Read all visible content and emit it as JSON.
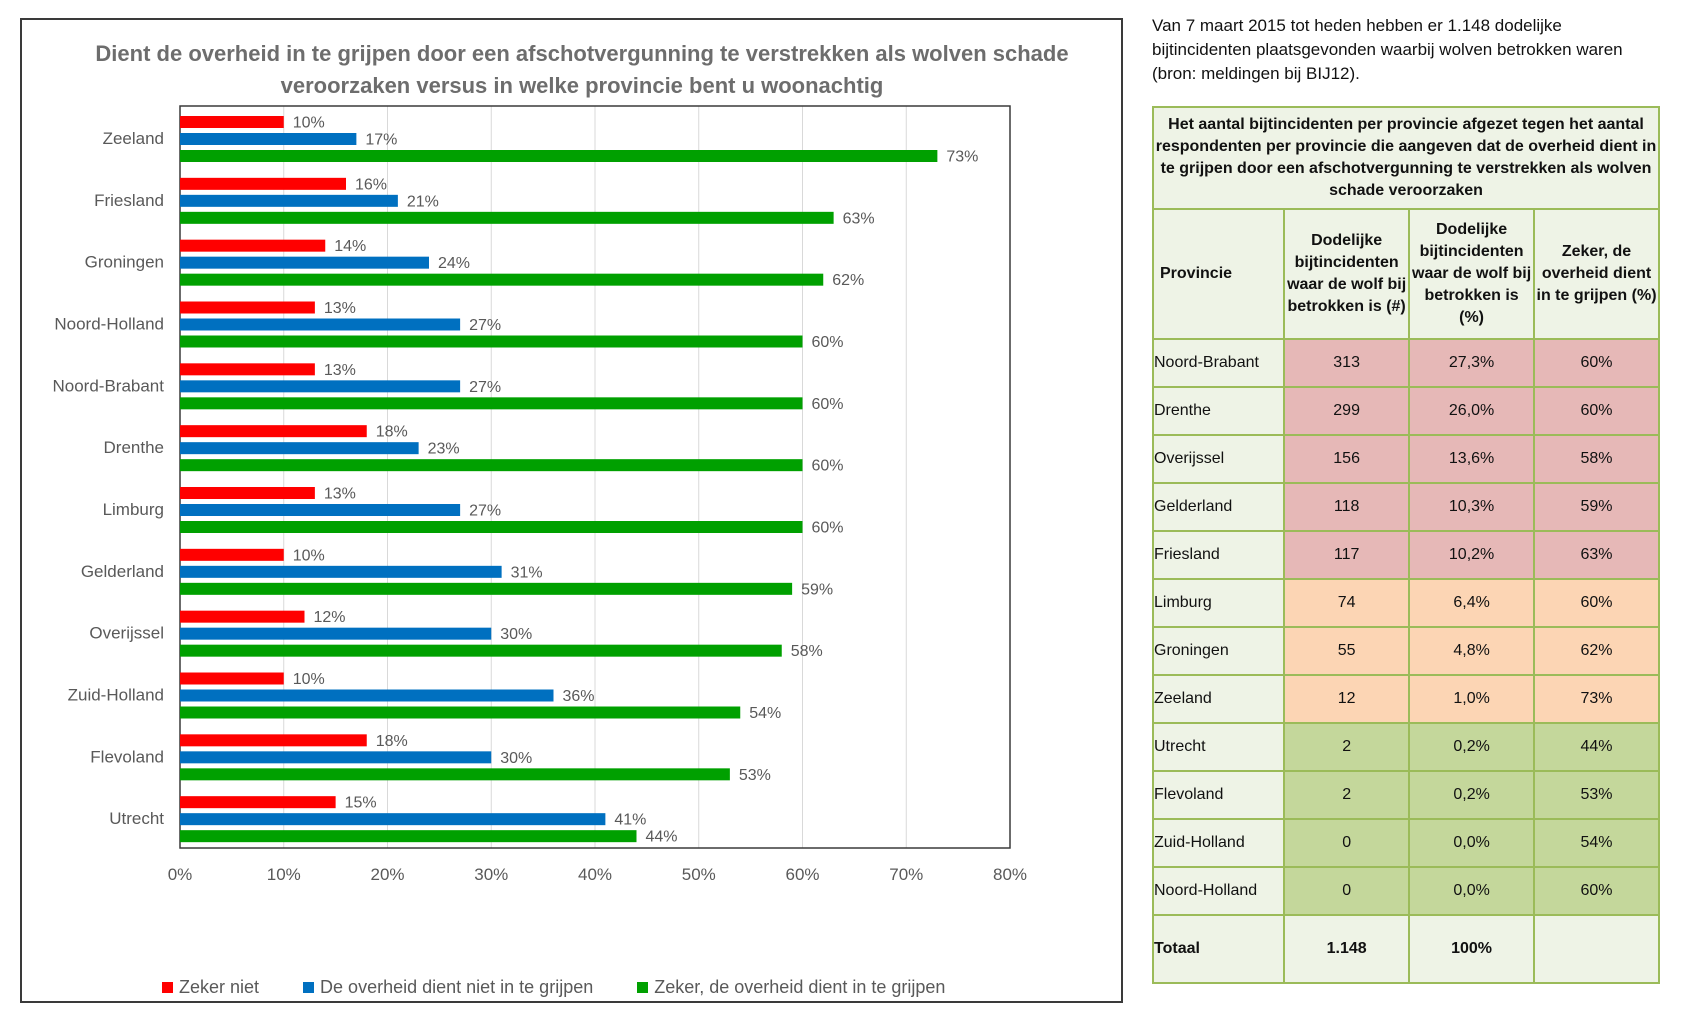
{
  "chart_data": {
    "type": "bar",
    "orientation": "horizontal",
    "title": "Dient de overheid in te grijpen door een afschotvergunning te verstrekken als wolven schade veroorzaken versus in welke provincie bent u woonachtig",
    "categories": [
      "Zeeland",
      "Friesland",
      "Groningen",
      "Noord-Holland",
      "Noord-Brabant",
      "Drenthe",
      "Limburg",
      "Gelderland",
      "Overijssel",
      "Zuid-Holland",
      "Flevoland",
      "Utrecht"
    ],
    "series": [
      {
        "name": "Zeker niet",
        "color": "#ff0000",
        "values": [
          10,
          16,
          14,
          13,
          13,
          18,
          13,
          10,
          12,
          10,
          18,
          15
        ]
      },
      {
        "name": "De overheid dient niet in te grijpen",
        "color": "#0070c0",
        "values": [
          17,
          21,
          24,
          27,
          27,
          23,
          27,
          31,
          30,
          36,
          30,
          41
        ]
      },
      {
        "name": "Zeker, de overheid dient in te grijpen",
        "color": "#00a000",
        "values": [
          73,
          63,
          62,
          60,
          60,
          60,
          60,
          59,
          58,
          54,
          53,
          44
        ]
      }
    ],
    "xlim": [
      0,
      80
    ],
    "xticks": [
      "0%",
      "10%",
      "20%",
      "30%",
      "40%",
      "50%",
      "60%",
      "70%",
      "80%"
    ],
    "grid": true,
    "legend": "bottom"
  },
  "intro_text": "Van 7 maart 2015 tot heden hebben er 1.148 dodelijke bijtincidenten plaatsgevonden waarbij wolven betrokken waren (bron: meldingen bij BIJ12).",
  "table": {
    "caption": "Het aantal bijtincidenten per provincie afgezet tegen het aantal respondenten per provincie die aangeven dat de overheid dient in te grijpen door een afschotvergunning te verstrekken als wolven schade veroorzaken",
    "headers": [
      "Provincie",
      "Dodelijke bijtincidenten waar de wolf bij betrokken is (#)",
      "Dodelijke bijtincidenten waar de wolf bij betrokken is (%)",
      "Zeker, de overheid dient in te grijpen (%)"
    ],
    "rows": [
      {
        "provincie": "Noord-Brabant",
        "count": "313",
        "pct": "27,3%",
        "zeker": "60%",
        "band": "red"
      },
      {
        "provincie": "Drenthe",
        "count": "299",
        "pct": "26,0%",
        "zeker": "60%",
        "band": "red"
      },
      {
        "provincie": "Overijssel",
        "count": "156",
        "pct": "13,6%",
        "zeker": "58%",
        "band": "red"
      },
      {
        "provincie": "Gelderland",
        "count": "118",
        "pct": "10,3%",
        "zeker": "59%",
        "band": "red"
      },
      {
        "provincie": "Friesland",
        "count": "117",
        "pct": "10,2%",
        "zeker": "63%",
        "band": "red"
      },
      {
        "provincie": "Limburg",
        "count": "74",
        "pct": "6,4%",
        "zeker": "60%",
        "band": "orange"
      },
      {
        "provincie": "Groningen",
        "count": "55",
        "pct": "4,8%",
        "zeker": "62%",
        "band": "orange"
      },
      {
        "provincie": "Zeeland",
        "count": "12",
        "pct": "1,0%",
        "zeker": "73%",
        "band": "orange"
      },
      {
        "provincie": "Utrecht",
        "count": "2",
        "pct": "0,2%",
        "zeker": "44%",
        "band": "green"
      },
      {
        "provincie": "Flevoland",
        "count": "2",
        "pct": "0,2%",
        "zeker": "53%",
        "band": "green"
      },
      {
        "provincie": "Zuid-Holland",
        "count": "0",
        "pct": "0,0%",
        "zeker": "54%",
        "band": "green"
      },
      {
        "provincie": "Noord-Holland",
        "count": "0",
        "pct": "0,0%",
        "zeker": "60%",
        "band": "green"
      }
    ],
    "total": {
      "label": "Totaal",
      "count": "1.148",
      "pct": "100%",
      "zeker": ""
    }
  }
}
